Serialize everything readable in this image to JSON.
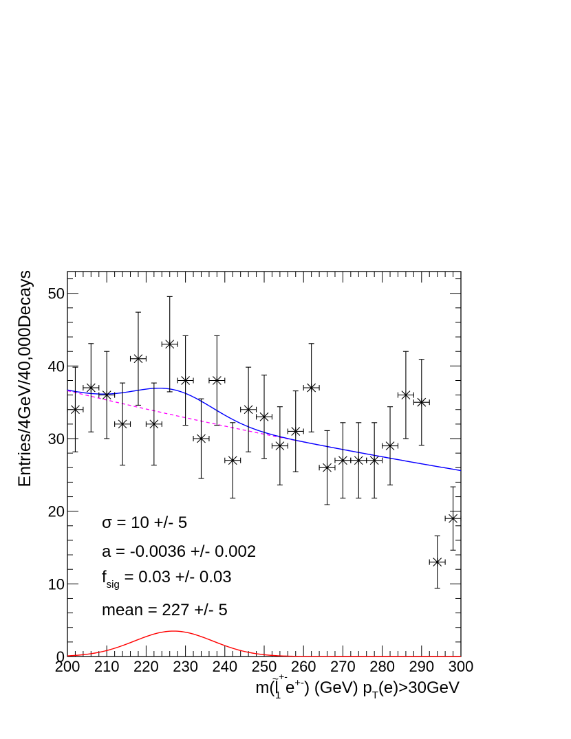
{
  "chart_data": {
    "type": "scatter",
    "title": "",
    "xlabel": {
      "parts": [
        "m(",
        "l",
        "~",
        "+-",
        "1",
        " e",
        "+-",
        ") (GeV) p",
        "T",
        "(e)>30GeV"
      ]
    },
    "ylabel": "Entries/4GeV/40,000Decays",
    "xlim": [
      200,
      300
    ],
    "ylim": [
      0,
      53
    ],
    "x_ticks": [
      200,
      210,
      220,
      230,
      240,
      250,
      260,
      270,
      280,
      290,
      300
    ],
    "y_ticks": [
      0,
      10,
      20,
      30,
      40,
      50
    ],
    "bin_width": 4,
    "x": [
      202,
      206,
      210,
      214,
      218,
      222,
      226,
      230,
      234,
      238,
      242,
      246,
      250,
      254,
      258,
      262,
      266,
      270,
      274,
      278,
      282,
      286,
      290,
      294,
      298
    ],
    "y": [
      34,
      37,
      36,
      32,
      41,
      32,
      43,
      38,
      30,
      38,
      27,
      34,
      33,
      29,
      31,
      37,
      26,
      27,
      27,
      27,
      29,
      36,
      35,
      13,
      19
    ],
    "fit": {
      "total": {
        "color": "#0000ff",
        "style": "solid"
      },
      "background": {
        "color": "#ff00ff",
        "style": "dashed",
        "y_at_200": 36.6,
        "y_at_300": 25.6
      },
      "signal": {
        "color": "#ff0000",
        "style": "solid",
        "peak": 3.5,
        "mean": 227,
        "sigma": 10
      }
    },
    "annotations": [
      {
        "key": "sigma",
        "text": "σ =  10 +/- 5"
      },
      {
        "key": "a",
        "text": "a = -0.0036 +/- 0.002"
      },
      {
        "key": "fsig",
        "main": "f",
        "sub": "sig",
        "rest": " =  0.03 +/- 0.03"
      },
      {
        "key": "mean",
        "text": "mean =  227 +/- 5"
      }
    ],
    "grid": false,
    "legend": "none"
  }
}
